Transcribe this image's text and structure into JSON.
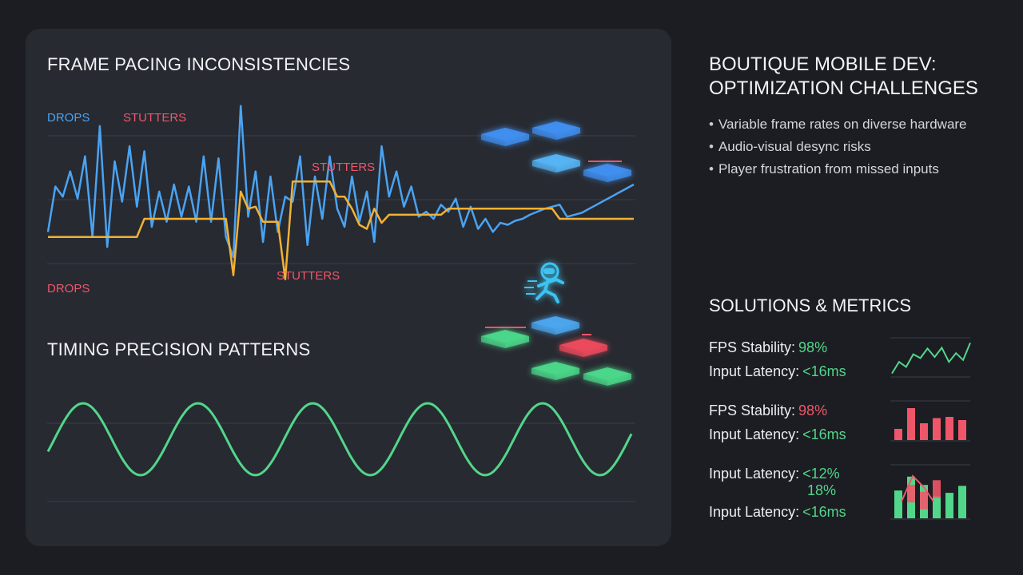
{
  "colors": {
    "blue": "#4aa3f2",
    "yellow": "#f2b134",
    "red": "#f0566a",
    "green": "#52d68a",
    "cube_blue": "#3f8ff0",
    "cube_green": "#4bd88a",
    "cube_red": "#ee4a5c"
  },
  "left": {
    "title_top": "FRAME PACING INCONSISTENCIES",
    "title_bottom": "TIMING PRECISION PATTERNS",
    "annotations": {
      "drops_top": "DROPS",
      "stutters_top": "STUTTERS",
      "stutters_mid": "STUTTERS",
      "stutters_low": "STUTTERS",
      "drops_low": "DROPS"
    }
  },
  "right": {
    "title": "BOUTIQUE MOBILE DEV:\nOPTIMIZATION CHALLENGES",
    "bullets": [
      "Variable frame rates on diverse hardware",
      "Audio-visual desync risks",
      "Player frustration from missed inputs"
    ],
    "solutions_title": "SOLUTIONS & METRICS",
    "metrics": [
      {
        "a_label": "FPS Stability:",
        "a_value": "98%",
        "b_label": "Input Latency:",
        "b_value": "<16ms"
      },
      {
        "a_label": "FPS Stability:",
        "a_value": "98%",
        "b_label": "Input Latency:",
        "b_value": "<16ms"
      },
      {
        "a_label": "Input Latency:",
        "a_value": "<12%",
        "mid_value": "18%",
        "b_label": "Input Latency:",
        "b_value": "<16ms"
      }
    ]
  },
  "chart_data": [
    {
      "type": "line",
      "title": "FRAME PACING INCONSISTENCIES",
      "xlabel": "",
      "ylabel": "",
      "x": [
        0,
        1,
        2,
        3,
        4,
        5,
        6,
        7,
        8,
        9,
        10,
        11,
        12,
        13,
        14,
        15,
        16,
        17,
        18,
        19,
        20,
        21,
        22,
        23,
        24,
        25,
        26,
        27,
        28,
        29,
        30,
        31,
        32,
        33,
        34,
        35,
        36,
        37,
        38,
        39,
        40,
        41,
        42,
        43,
        44,
        45,
        46,
        47,
        48,
        49,
        50,
        51,
        52,
        53,
        54,
        55,
        56,
        57,
        58,
        59,
        60,
        61,
        62,
        63,
        64,
        65,
        66,
        67,
        68,
        69,
        70,
        71,
        72,
        73,
        74,
        75,
        76,
        77,
        78,
        79
      ],
      "series": [
        {
          "color": "blue",
          "values": [
            35,
            80,
            70,
            95,
            68,
            110,
            30,
            140,
            20,
            105,
            65,
            120,
            60,
            115,
            40,
            75,
            45,
            82,
            50,
            80,
            45,
            110,
            45,
            108,
            30,
            10,
            160,
            50,
            95,
            25,
            90,
            35,
            70,
            65,
            110,
            22,
            90,
            48,
            110,
            58,
            40,
            90,
            45,
            75,
            25,
            120,
            70,
            95,
            60,
            80,
            50,
            55,
            48,
            62,
            55,
            68,
            40,
            60,
            38,
            48,
            35,
            44,
            42,
            46,
            48,
            52,
            55,
            58,
            60,
            62,
            50,
            52,
            54,
            58,
            62,
            66,
            70,
            74,
            78,
            82
          ]
        },
        {
          "color": "yellow",
          "values": [
            30,
            30,
            30,
            30,
            30,
            30,
            30,
            30,
            30,
            30,
            30,
            30,
            30,
            48,
            48,
            48,
            48,
            48,
            48,
            48,
            48,
            48,
            48,
            48,
            48,
            -8,
            75,
            58,
            60,
            45,
            45,
            45,
            -12,
            85,
            85,
            85,
            85,
            85,
            85,
            70,
            70,
            58,
            42,
            38,
            58,
            44,
            52,
            52,
            52,
            52,
            52,
            52,
            52,
            52,
            58,
            58,
            58,
            58,
            58,
            58,
            58,
            58,
            58,
            58,
            58,
            58,
            58,
            58,
            58,
            48,
            48,
            48,
            48,
            48,
            48,
            48,
            48,
            48,
            48,
            48
          ]
        }
      ],
      "ylim": [
        -40,
        170
      ],
      "annotations": [
        "DROPS",
        "STUTTERS",
        "STUTTERS",
        "STUTTERS",
        "DROPS"
      ]
    },
    {
      "type": "line",
      "title": "TIMING PRECISION PATTERNS",
      "series": [
        {
          "color": "green",
          "values": [
            0,
            0.7,
            1,
            0.7,
            0,
            -0.7,
            -1,
            -0.7,
            0,
            0.7,
            1,
            0.7,
            0,
            -0.7,
            -1,
            -0.7,
            0,
            0.7,
            1,
            0.7,
            0,
            -0.7,
            -1,
            -0.7,
            0,
            0.7,
            1,
            0.7,
            0,
            -0.7,
            -1,
            -0.7,
            0,
            0.7,
            1,
            0.7,
            0,
            -0.7,
            -1,
            -0.7,
            0
          ]
        }
      ],
      "ylim": [
        -1.2,
        1.2
      ]
    },
    {
      "type": "line",
      "series": [
        {
          "color": "green",
          "values": [
            5,
            35,
            22,
            55,
            45,
            70,
            48,
            72,
            35,
            58,
            40,
            85
          ]
        }
      ]
    },
    {
      "type": "bar",
      "series": [
        {
          "color": "red",
          "values": [
            28,
            80,
            42,
            55,
            58,
            50
          ]
        }
      ]
    },
    {
      "type": "bar",
      "series": [
        {
          "color": "green",
          "values": [
            60,
            90,
            72,
            48,
            55,
            70
          ]
        },
        {
          "color": "red",
          "values": [
            0,
            55,
            40,
            65,
            0,
            0
          ]
        }
      ]
    }
  ]
}
